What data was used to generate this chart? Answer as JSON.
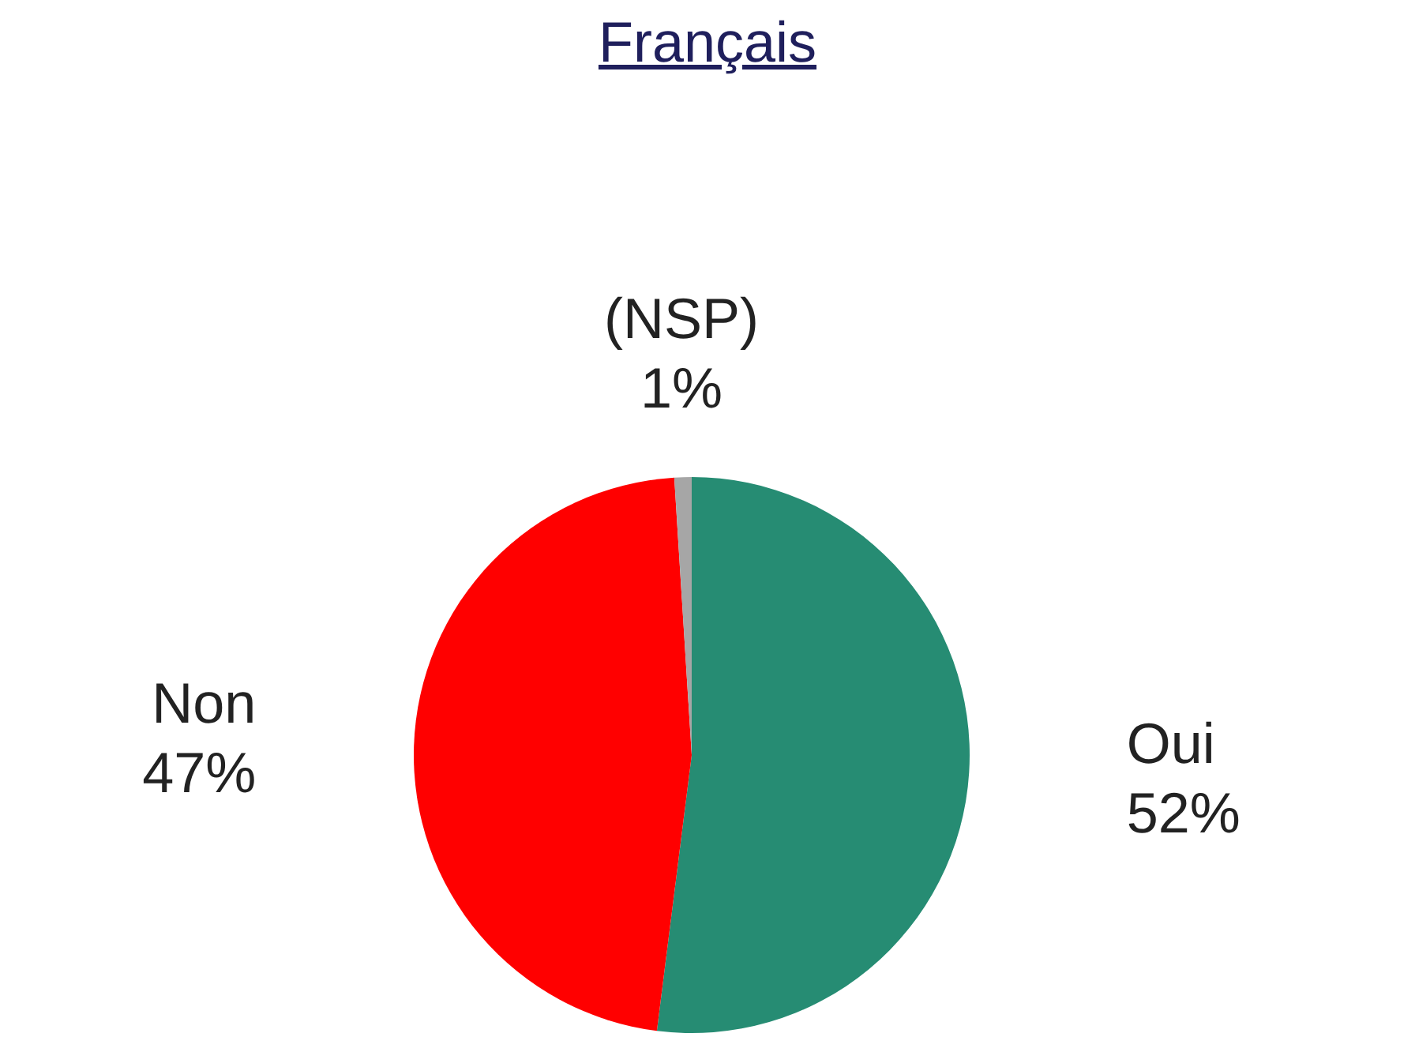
{
  "chart_data": {
    "type": "pie",
    "title": "Français",
    "categories": [
      "Oui",
      "Non",
      "(NSP)"
    ],
    "values": [
      52,
      47,
      1
    ],
    "colors": [
      "#268c73",
      "#ff0000",
      "#a6a6a6"
    ],
    "value_labels": [
      "52%",
      "47%",
      "1%"
    ],
    "legend": false
  }
}
